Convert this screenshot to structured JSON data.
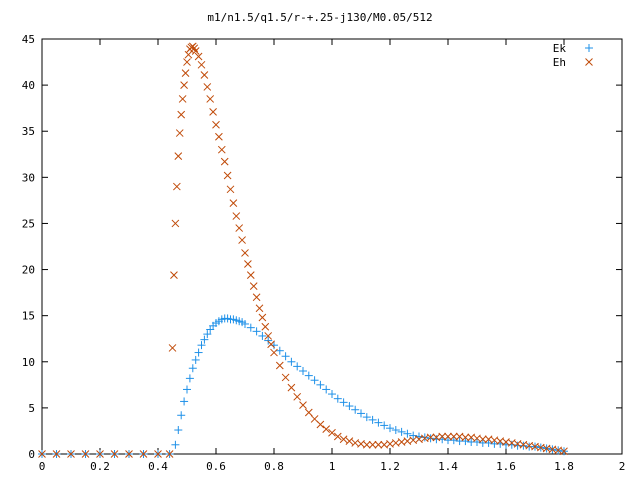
{
  "chart_data": {
    "type": "scatter",
    "title": "m1/n1.5/q1.5/r-+.25-j130/M0.05/512",
    "xlabel": "",
    "ylabel": "",
    "xlim": [
      0,
      2
    ],
    "ylim": [
      0,
      45
    ],
    "xticks": [
      0,
      0.2,
      0.4,
      0.6,
      0.8,
      1,
      1.2,
      1.4,
      1.6,
      1.8,
      2
    ],
    "xtick_labels": [
      "0",
      "0.2",
      "0.4",
      "0.6",
      "0.8",
      "1",
      "1.2",
      "1.4",
      "1.6",
      "1.8",
      "2"
    ],
    "yticks": [
      0,
      5,
      10,
      15,
      20,
      25,
      30,
      35,
      40,
      45
    ],
    "ytick_labels": [
      "0",
      "5",
      "10",
      "15",
      "20",
      "25",
      "30",
      "35",
      "40",
      "45"
    ],
    "grid": false,
    "legend_position": "top-right",
    "series": [
      {
        "name": "Ek",
        "marker": "plus",
        "color": "#1E90E8",
        "points": [
          [
            0.0,
            0.0
          ],
          [
            0.05,
            0.0
          ],
          [
            0.1,
            0.0
          ],
          [
            0.15,
            0.0
          ],
          [
            0.2,
            0.0
          ],
          [
            0.25,
            0.0
          ],
          [
            0.3,
            0.0
          ],
          [
            0.35,
            0.0
          ],
          [
            0.4,
            0.0
          ],
          [
            0.44,
            0.0
          ],
          [
            0.46,
            1.0
          ],
          [
            0.47,
            2.6
          ],
          [
            0.48,
            4.2
          ],
          [
            0.49,
            5.7
          ],
          [
            0.5,
            7.0
          ],
          [
            0.51,
            8.2
          ],
          [
            0.52,
            9.3
          ],
          [
            0.53,
            10.2
          ],
          [
            0.54,
            11.0
          ],
          [
            0.55,
            11.8
          ],
          [
            0.56,
            12.4
          ],
          [
            0.57,
            13.0
          ],
          [
            0.58,
            13.5
          ],
          [
            0.59,
            13.9
          ],
          [
            0.6,
            14.2
          ],
          [
            0.61,
            14.4
          ],
          [
            0.62,
            14.6
          ],
          [
            0.63,
            14.7
          ],
          [
            0.64,
            14.7
          ],
          [
            0.65,
            14.6
          ],
          [
            0.66,
            14.6
          ],
          [
            0.67,
            14.5
          ],
          [
            0.68,
            14.4
          ],
          [
            0.69,
            14.3
          ],
          [
            0.7,
            14.1
          ],
          [
            0.72,
            13.7
          ],
          [
            0.74,
            13.3
          ],
          [
            0.76,
            12.8
          ],
          [
            0.78,
            12.3
          ],
          [
            0.8,
            11.8
          ],
          [
            0.82,
            11.2
          ],
          [
            0.84,
            10.6
          ],
          [
            0.86,
            10.0
          ],
          [
            0.88,
            9.5
          ],
          [
            0.9,
            9.0
          ],
          [
            0.92,
            8.5
          ],
          [
            0.94,
            8.0
          ],
          [
            0.96,
            7.5
          ],
          [
            0.98,
            7.0
          ],
          [
            1.0,
            6.5
          ],
          [
            1.02,
            6.0
          ],
          [
            1.04,
            5.6
          ],
          [
            1.06,
            5.2
          ],
          [
            1.08,
            4.8
          ],
          [
            1.1,
            4.4
          ],
          [
            1.12,
            4.0
          ],
          [
            1.14,
            3.7
          ],
          [
            1.16,
            3.4
          ],
          [
            1.18,
            3.1
          ],
          [
            1.2,
            2.8
          ],
          [
            1.22,
            2.6
          ],
          [
            1.24,
            2.4
          ],
          [
            1.26,
            2.2
          ],
          [
            1.28,
            2.0
          ],
          [
            1.3,
            1.9
          ],
          [
            1.32,
            1.8
          ],
          [
            1.34,
            1.7
          ],
          [
            1.36,
            1.6
          ],
          [
            1.38,
            1.6
          ],
          [
            1.4,
            1.5
          ],
          [
            1.42,
            1.5
          ],
          [
            1.44,
            1.4
          ],
          [
            1.46,
            1.4
          ],
          [
            1.48,
            1.3
          ],
          [
            1.5,
            1.3
          ],
          [
            1.52,
            1.2
          ],
          [
            1.54,
            1.2
          ],
          [
            1.56,
            1.1
          ],
          [
            1.58,
            1.1
          ],
          [
            1.6,
            1.0
          ],
          [
            1.62,
            1.0
          ],
          [
            1.64,
            0.9
          ],
          [
            1.66,
            0.9
          ],
          [
            1.68,
            0.8
          ],
          [
            1.7,
            0.8
          ],
          [
            1.72,
            0.7
          ],
          [
            1.74,
            0.6
          ],
          [
            1.76,
            0.5
          ],
          [
            1.78,
            0.4
          ],
          [
            1.8,
            0.3
          ]
        ]
      },
      {
        "name": "Eh",
        "marker": "cross",
        "color": "#C04A08",
        "points": [
          [
            0.0,
            0.0
          ],
          [
            0.05,
            0.0
          ],
          [
            0.1,
            0.0
          ],
          [
            0.15,
            0.0
          ],
          [
            0.2,
            0.0
          ],
          [
            0.25,
            0.0
          ],
          [
            0.3,
            0.0
          ],
          [
            0.35,
            0.0
          ],
          [
            0.4,
            0.0
          ],
          [
            0.44,
            0.0
          ],
          [
            0.45,
            11.5
          ],
          [
            0.455,
            19.4
          ],
          [
            0.46,
            25.0
          ],
          [
            0.465,
            29.0
          ],
          [
            0.47,
            32.3
          ],
          [
            0.475,
            34.8
          ],
          [
            0.48,
            36.8
          ],
          [
            0.485,
            38.5
          ],
          [
            0.49,
            40.0
          ],
          [
            0.495,
            41.3
          ],
          [
            0.5,
            42.5
          ],
          [
            0.505,
            43.3
          ],
          [
            0.51,
            43.9
          ],
          [
            0.515,
            44.1
          ],
          [
            0.52,
            44.2
          ],
          [
            0.525,
            44.0
          ],
          [
            0.53,
            43.7
          ],
          [
            0.54,
            43.1
          ],
          [
            0.55,
            42.2
          ],
          [
            0.56,
            41.1
          ],
          [
            0.57,
            39.8
          ],
          [
            0.58,
            38.5
          ],
          [
            0.59,
            37.1
          ],
          [
            0.6,
            35.7
          ],
          [
            0.61,
            34.4
          ],
          [
            0.62,
            33.0
          ],
          [
            0.63,
            31.7
          ],
          [
            0.64,
            30.2
          ],
          [
            0.65,
            28.7
          ],
          [
            0.66,
            27.2
          ],
          [
            0.67,
            25.8
          ],
          [
            0.68,
            24.5
          ],
          [
            0.69,
            23.2
          ],
          [
            0.7,
            21.8
          ],
          [
            0.71,
            20.6
          ],
          [
            0.72,
            19.4
          ],
          [
            0.73,
            18.2
          ],
          [
            0.74,
            17.0
          ],
          [
            0.75,
            15.8
          ],
          [
            0.76,
            14.8
          ],
          [
            0.77,
            13.8
          ],
          [
            0.78,
            12.8
          ],
          [
            0.79,
            11.9
          ],
          [
            0.8,
            11.0
          ],
          [
            0.82,
            9.6
          ],
          [
            0.84,
            8.3
          ],
          [
            0.86,
            7.2
          ],
          [
            0.88,
            6.2
          ],
          [
            0.9,
            5.3
          ],
          [
            0.92,
            4.5
          ],
          [
            0.94,
            3.8
          ],
          [
            0.96,
            3.2
          ],
          [
            0.98,
            2.7
          ],
          [
            1.0,
            2.3
          ],
          [
            1.02,
            1.9
          ],
          [
            1.04,
            1.6
          ],
          [
            1.06,
            1.4
          ],
          [
            1.08,
            1.2
          ],
          [
            1.1,
            1.1
          ],
          [
            1.12,
            1.0
          ],
          [
            1.14,
            1.0
          ],
          [
            1.16,
            1.0
          ],
          [
            1.18,
            1.0
          ],
          [
            1.2,
            1.1
          ],
          [
            1.22,
            1.2
          ],
          [
            1.24,
            1.3
          ],
          [
            1.26,
            1.4
          ],
          [
            1.28,
            1.5
          ],
          [
            1.3,
            1.6
          ],
          [
            1.32,
            1.7
          ],
          [
            1.34,
            1.8
          ],
          [
            1.36,
            1.8
          ],
          [
            1.38,
            1.9
          ],
          [
            1.4,
            1.9
          ],
          [
            1.42,
            1.9
          ],
          [
            1.44,
            1.9
          ],
          [
            1.46,
            1.8
          ],
          [
            1.48,
            1.8
          ],
          [
            1.5,
            1.7
          ],
          [
            1.52,
            1.6
          ],
          [
            1.54,
            1.6
          ],
          [
            1.56,
            1.5
          ],
          [
            1.58,
            1.4
          ],
          [
            1.6,
            1.3
          ],
          [
            1.62,
            1.2
          ],
          [
            1.64,
            1.1
          ],
          [
            1.66,
            1.0
          ],
          [
            1.68,
            0.9
          ],
          [
            1.7,
            0.8
          ],
          [
            1.72,
            0.7
          ],
          [
            1.74,
            0.6
          ],
          [
            1.76,
            0.5
          ],
          [
            1.78,
            0.4
          ],
          [
            1.8,
            0.3
          ]
        ]
      }
    ]
  }
}
